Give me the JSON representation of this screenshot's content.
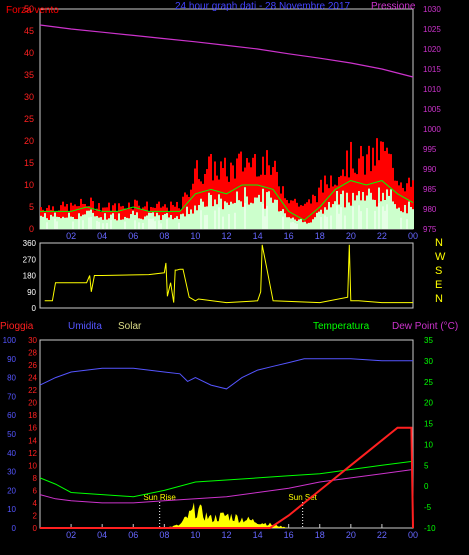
{
  "title": "24 hour graph dati - 28 Novembre 2017",
  "colors": {
    "wind": "#ff0000",
    "gust": "#00ff00",
    "wind_fill": "#ffffff",
    "pressure": "#cc33cc",
    "direction": "#ffff00",
    "rain": "#ff2020",
    "humidity": "#5555ff",
    "solar": "#ffff00",
    "temperature": "#00ff00",
    "dewpoint": "#cc33cc",
    "frame": "#cccccc"
  },
  "chart_data": [
    {
      "type": "area",
      "name": "wind-pressure",
      "labels": {
        "left": "Forza vento",
        "title": "24 hour graph dati - 28 Novembre 2017",
        "right": "Pressione"
      },
      "x_ticks": [
        "02",
        "04",
        "06",
        "08",
        "10",
        "12",
        "14",
        "16",
        "18",
        "20",
        "22",
        "00"
      ],
      "y_left_ticks": [
        0,
        5,
        10,
        15,
        20,
        25,
        30,
        35,
        40,
        45,
        50
      ],
      "y_right_ticks": [
        975,
        980,
        985,
        990,
        995,
        1000,
        1005,
        1010,
        1015,
        1020,
        1025,
        1030
      ],
      "wind_ylim": [
        0,
        50
      ],
      "pressure_ylim": [
        975,
        1030
      ],
      "wind": {
        "hours": [
          0,
          1,
          2,
          3,
          4,
          5,
          6,
          7,
          8,
          9,
          10,
          11,
          12,
          13,
          14,
          15,
          16,
          17,
          18,
          19,
          20,
          21,
          22,
          23,
          24
        ],
        "values": [
          4,
          4,
          4,
          5,
          4,
          4,
          5,
          4,
          4,
          4,
          8,
          9,
          8,
          10,
          10,
          9,
          4,
          2,
          5,
          9,
          11,
          10,
          11,
          8,
          6
        ],
        "gust": [
          5,
          5,
          5,
          6,
          5,
          5,
          6,
          5,
          5,
          5,
          13,
          14,
          13,
          15,
          16,
          13,
          7,
          5,
          9,
          13,
          16,
          15,
          18,
          12,
          9
        ]
      },
      "pressure": {
        "hours": [
          0,
          2,
          4,
          6,
          8,
          10,
          12,
          14,
          16,
          18,
          20,
          22,
          24
        ],
        "values": [
          1026,
          1025,
          1024.2,
          1023.4,
          1022.6,
          1021.8,
          1020.9,
          1020,
          1018.8,
          1017.7,
          1016.5,
          1015,
          1013
        ]
      }
    },
    {
      "type": "line",
      "name": "wind-direction",
      "y_ticks": [
        0,
        90,
        180,
        270,
        360
      ],
      "compass": [
        "N",
        "W",
        "S",
        "E",
        "N"
      ],
      "ylim": [
        0,
        360
      ],
      "hours": [
        0.3,
        0.8,
        1,
        3,
        3.2,
        3.3,
        3.5,
        4,
        7,
        8,
        8.1,
        8.2,
        8.4,
        8.6,
        8.7,
        8.8,
        9,
        9.2,
        9.6,
        10,
        10.2,
        12,
        14,
        14.2,
        14.3,
        15,
        18,
        19.8,
        19.9,
        20,
        20.5,
        22,
        24
      ],
      "values": [
        40,
        40,
        140,
        140,
        180,
        90,
        180,
        180,
        185,
        195,
        250,
        65,
        140,
        30,
        210,
        210,
        215,
        215,
        60,
        40,
        50,
        30,
        40,
        90,
        350,
        40,
        30,
        60,
        350,
        40,
        40,
        30,
        30
      ]
    },
    {
      "type": "line",
      "name": "rain-humidity-solar-temperature",
      "labels": [
        "Pioggia",
        "Umidita",
        "Solar",
        "Temperatura",
        "Dew Point (°C)"
      ],
      "x_ticks": [
        "02",
        "04",
        "06",
        "08",
        "10",
        "12",
        "14",
        "16",
        "18",
        "20",
        "22",
        "00"
      ],
      "rain_ticks": [
        0,
        2,
        4,
        6,
        8,
        10,
        12,
        14,
        16,
        18,
        20,
        22,
        24,
        26,
        28,
        30
      ],
      "rain_ylim": [
        0,
        30
      ],
      "humidity_ticks": [
        0,
        10,
        20,
        30,
        40,
        50,
        60,
        70,
        80,
        90,
        100
      ],
      "humidity_ylim": [
        0,
        100
      ],
      "temp_ticks": [
        -10,
        -5,
        0,
        5,
        10,
        15,
        20,
        25,
        30,
        35
      ],
      "temp_ylim": [
        -10,
        35
      ],
      "annotations": {
        "sunrise": {
          "label": "Sun Rise",
          "hour": 7.7
        },
        "sunset": {
          "label": "Sun Set",
          "hour": 16.9
        }
      },
      "rain": {
        "hours": [
          0,
          14.8,
          16,
          17,
          18,
          19,
          20,
          21,
          22,
          22.5,
          23,
          23.9,
          24
        ],
        "values": [
          0,
          0,
          2,
          4,
          6,
          8,
          10,
          12,
          14,
          15,
          16,
          16,
          0
        ]
      },
      "humidity": {
        "hours": [
          0,
          1,
          2,
          3,
          4,
          5,
          6,
          7,
          8,
          9,
          9.5,
          10,
          11,
          12,
          13,
          14,
          15,
          16,
          17,
          18,
          20,
          22,
          24
        ],
        "values": [
          76,
          80,
          83,
          84,
          85,
          85,
          85,
          84,
          83,
          82,
          78,
          80,
          76,
          74,
          80,
          84,
          86,
          88,
          90,
          90,
          90,
          89,
          89
        ]
      },
      "temperature": {
        "hours": [
          0,
          1,
          2,
          4,
          6,
          8,
          10,
          12,
          14,
          16,
          18,
          20,
          22,
          24
        ],
        "values": [
          2,
          0.5,
          -1.5,
          -2,
          -2.5,
          -1,
          1,
          1.5,
          2,
          2.5,
          3,
          4,
          5,
          6
        ]
      },
      "dewpoint": {
        "hours": [
          0,
          1,
          2,
          4,
          6,
          8,
          10,
          12,
          14,
          16,
          18,
          20,
          22,
          24
        ],
        "values": [
          -2,
          -3,
          -3.5,
          -4,
          -4,
          -3.5,
          -3,
          -2.5,
          -1.5,
          -0.5,
          1,
          2,
          3,
          4
        ]
      },
      "solar": {
        "hours": [
          8,
          9,
          10,
          11,
          12,
          13,
          14,
          15,
          16
        ],
        "values": [
          0,
          0.5,
          3,
          1.5,
          2,
          1.5,
          1,
          0.5,
          0
        ]
      }
    }
  ]
}
